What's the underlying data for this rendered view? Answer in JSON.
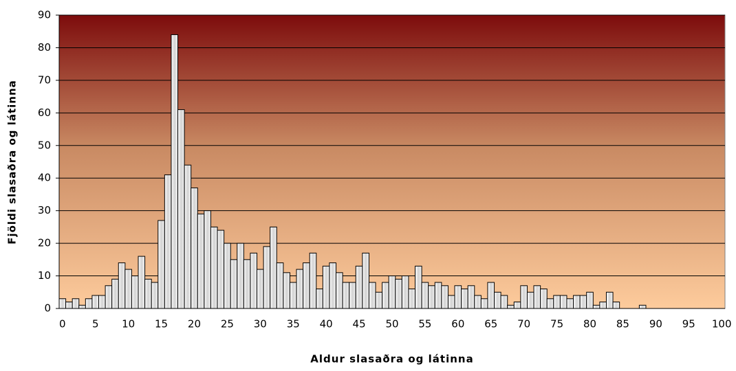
{
  "chart_data": {
    "type": "bar",
    "xlabel": "Aldur slasaðra og látinna",
    "ylabel": "Fjöldi slasaðra og látinna",
    "categories": [
      "0",
      null,
      null,
      null,
      null,
      "5",
      null,
      null,
      null,
      null,
      "10",
      null,
      null,
      null,
      null,
      "15",
      null,
      null,
      null,
      null,
      "20",
      null,
      null,
      null,
      null,
      "25",
      null,
      null,
      null,
      null,
      "30",
      null,
      null,
      null,
      null,
      "35",
      null,
      null,
      null,
      null,
      "40",
      null,
      null,
      null,
      null,
      "45",
      null,
      null,
      null,
      null,
      "50",
      null,
      null,
      null,
      null,
      "55",
      null,
      null,
      null,
      null,
      "60",
      null,
      null,
      null,
      null,
      "65",
      null,
      null,
      null,
      null,
      "70",
      null,
      null,
      null,
      null,
      "75",
      null,
      null,
      null,
      null,
      "80",
      null,
      null,
      null,
      null,
      "85",
      null,
      null,
      null,
      null,
      "90",
      null,
      null,
      null,
      null,
      "95",
      null,
      null,
      null,
      null,
      "100"
    ],
    "values": [
      3,
      2,
      3,
      1,
      3,
      4,
      4,
      7,
      9,
      14,
      12,
      10,
      16,
      9,
      8,
      27,
      41,
      84,
      61,
      44,
      37,
      29,
      30,
      25,
      24,
      20,
      15,
      20,
      15,
      17,
      12,
      19,
      25,
      14,
      11,
      8,
      12,
      14,
      17,
      6,
      13,
      14,
      11,
      8,
      8,
      13,
      17,
      8,
      5,
      8,
      10,
      9,
      10,
      6,
      13,
      8,
      7,
      8,
      7,
      4,
      7,
      6,
      7,
      4,
      3,
      8,
      5,
      4,
      1,
      2,
      7,
      5,
      7,
      6,
      3,
      4,
      4,
      3,
      4,
      4,
      5,
      1,
      2,
      5,
      2,
      0,
      0,
      0,
      1,
      0,
      0,
      0,
      0,
      0,
      0,
      0,
      0,
      0,
      0,
      0,
      0
    ],
    "color": "#e6e6e6",
    "ylim": [
      0,
      90
    ],
    "yticks": [
      0,
      10,
      20,
      30,
      40,
      50,
      60,
      70,
      80,
      90
    ],
    "grid": true
  }
}
